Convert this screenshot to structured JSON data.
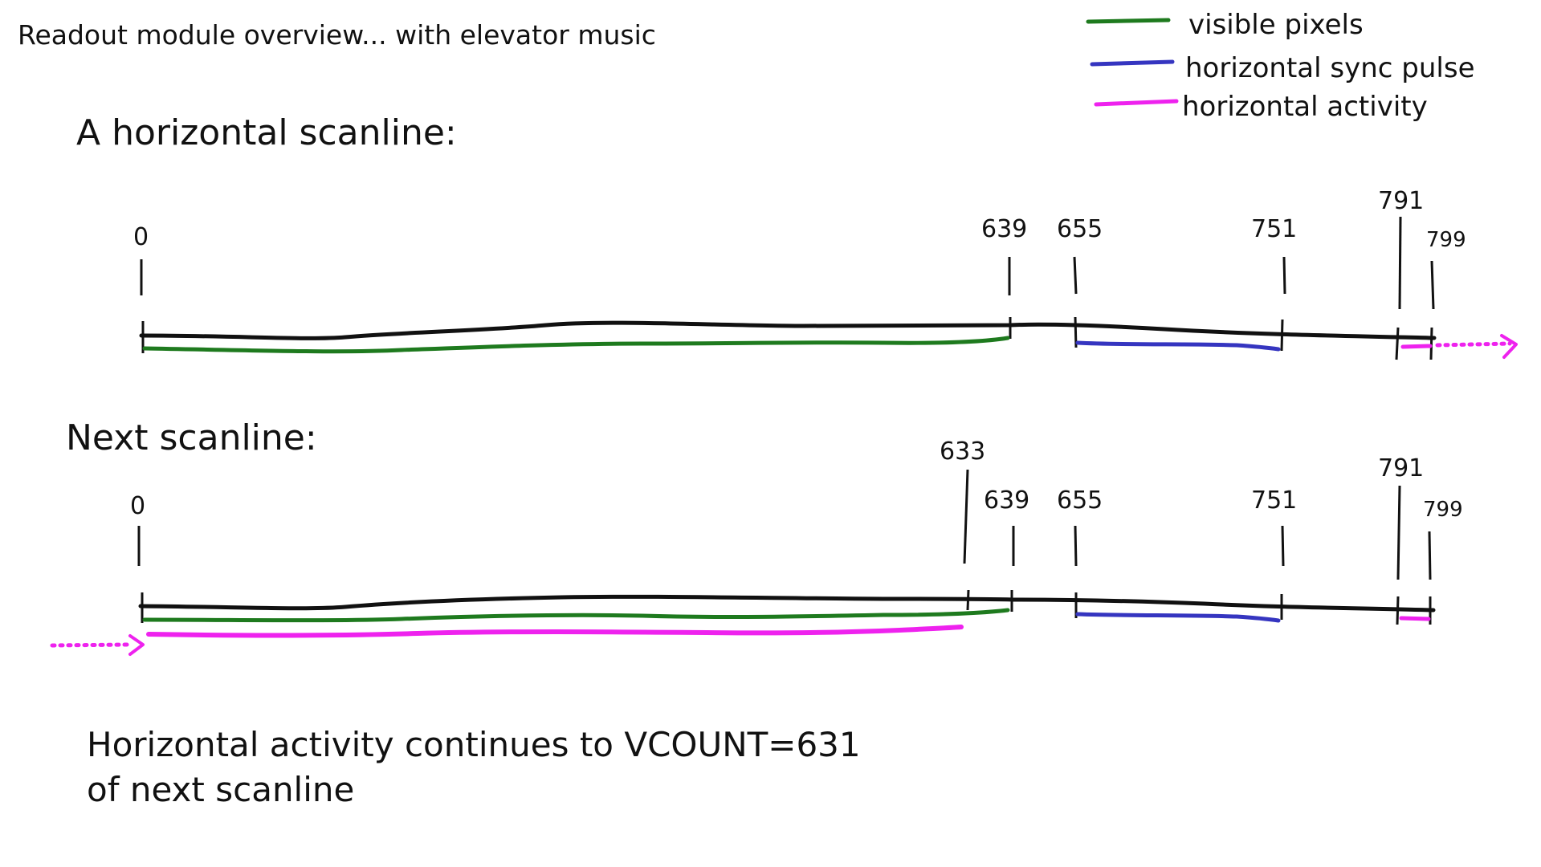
{
  "title": "Readout module overview... with elevator music",
  "legend": [
    {
      "label": "visible pixels",
      "color": "#1e7a1e"
    },
    {
      "label": "horizontal sync pulse",
      "color": "#3535c0"
    },
    {
      "label": "horizontal activity",
      "color": "#ee22ee"
    }
  ],
  "scanline1": {
    "heading": "A horizontal scanline:",
    "ticks": [
      "0",
      "639",
      "655",
      "751",
      "791",
      "799"
    ]
  },
  "scanline2": {
    "heading": "Next scanline:",
    "ticks": [
      "0",
      "633",
      "639",
      "655",
      "751",
      "791",
      "799"
    ]
  },
  "note": {
    "line1": "Horizontal activity continues to VCOUNT=631",
    "line2": "of next scanline"
  },
  "colors": {
    "ink": "#111111",
    "visible": "#1e7a1e",
    "sync": "#3535c0",
    "activity": "#ee22ee"
  }
}
